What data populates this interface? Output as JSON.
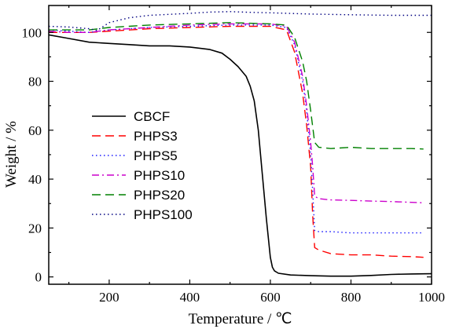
{
  "chart_data": {
    "type": "line",
    "xlabel": "Temperature / ℃",
    "ylabel": "Weight / %",
    "xlim": [
      50,
      1000
    ],
    "ylim": [
      -3,
      111
    ],
    "xticks": [
      200,
      400,
      600,
      800,
      1000
    ],
    "yticks": [
      0,
      20,
      40,
      60,
      80,
      100
    ],
    "grid": false,
    "legend_position": "center-left",
    "series": [
      {
        "name": "CBCF",
        "color": "#000000",
        "style": "solid",
        "x": [
          50,
          100,
          150,
          200,
          250,
          300,
          350,
          400,
          450,
          480,
          500,
          520,
          540,
          550,
          560,
          570,
          580,
          590,
          600,
          605,
          610,
          620,
          650,
          700,
          750,
          800,
          850,
          900,
          950,
          1000
        ],
        "y": [
          99,
          97.5,
          96,
          95.5,
          95,
          94.5,
          94.5,
          94,
          93,
          91.5,
          89,
          86,
          82,
          78,
          72,
          60,
          42,
          24,
          8,
          4,
          2.5,
          1.5,
          0.8,
          0.5,
          0.3,
          0.3,
          0.6,
          1,
          1.2,
          1.3
        ]
      },
      {
        "name": "PHPS3",
        "color": "#ff0000",
        "style": "dashed",
        "x": [
          50,
          100,
          150,
          200,
          300,
          400,
          500,
          600,
          640,
          660,
          680,
          690,
          700,
          705,
          710,
          720,
          750,
          800,
          850,
          900,
          950,
          980
        ],
        "y": [
          100,
          100,
          100,
          100.5,
          101.5,
          102,
          102.5,
          102.5,
          101,
          92,
          75,
          62,
          45,
          25,
          12,
          11,
          9.5,
          9,
          9,
          8.5,
          8.3,
          8
        ]
      },
      {
        "name": "PHPS5",
        "color": "#1a1aff",
        "style": "dotted",
        "x": [
          50,
          100,
          150,
          200,
          300,
          400,
          500,
          600,
          640,
          660,
          680,
          690,
          700,
          705,
          710,
          720,
          750,
          800,
          850,
          900,
          950,
          980
        ],
        "y": [
          101,
          100.5,
          100,
          101,
          102,
          102.5,
          103,
          103,
          102,
          95,
          80,
          68,
          50,
          35,
          19,
          18.5,
          18.5,
          18,
          18,
          18,
          18,
          18
        ]
      },
      {
        "name": "PHPS10",
        "color": "#cc00cc",
        "style": "dashdot",
        "x": [
          50,
          100,
          150,
          200,
          300,
          400,
          500,
          600,
          640,
          660,
          680,
          690,
          700,
          705,
          710,
          720,
          750,
          800,
          850,
          900,
          950,
          980
        ],
        "y": [
          100.5,
          100,
          100,
          101,
          102,
          103,
          103.5,
          103.5,
          102.5,
          96,
          82,
          70,
          55,
          45,
          33,
          32,
          31.5,
          31.3,
          31,
          30.8,
          30.5,
          30.3
        ]
      },
      {
        "name": "PHPS20",
        "color": "#008000",
        "style": "dashed",
        "x": [
          50,
          100,
          150,
          200,
          300,
          400,
          500,
          600,
          640,
          660,
          680,
          690,
          700,
          710,
          720,
          750,
          800,
          850,
          900,
          950,
          980
        ],
        "y": [
          101,
          101,
          101,
          102,
          103,
          103.5,
          104,
          103.5,
          103,
          98,
          88,
          80,
          68,
          55,
          53,
          52.5,
          53,
          52.5,
          52.5,
          52.5,
          52.3
        ]
      },
      {
        "name": "PHPS100",
        "color": "#000080",
        "style": "dotted",
        "x": [
          50,
          100,
          150,
          170,
          200,
          250,
          300,
          400,
          450,
          500,
          550,
          600,
          700,
          800,
          900,
          1000
        ],
        "y": [
          102.5,
          102.2,
          101.5,
          100.8,
          104,
          106,
          107,
          107.8,
          108.3,
          108.5,
          108.2,
          108,
          107.5,
          107.2,
          107,
          107
        ]
      }
    ]
  }
}
